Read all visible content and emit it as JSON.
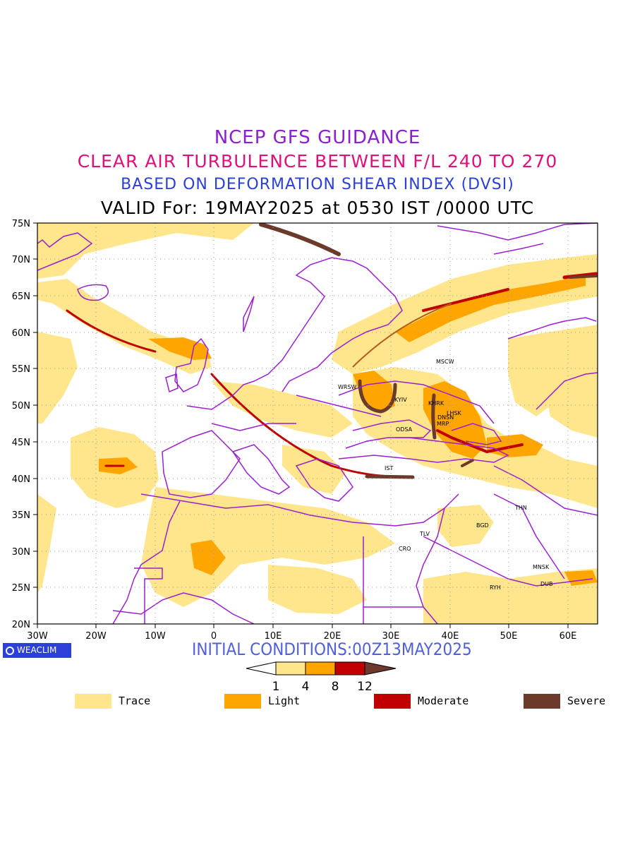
{
  "titles": {
    "line1": "NCEP GFS GUIDANCE",
    "line2": "CLEAR AIR TURBULENCE BETWEEN F/L 240 TO 270",
    "line3": "BASED ON DEFORMATION SHEAR INDEX (DVSI)",
    "line4": "VALID For: 19MAY2025 at 0530 IST /0000 UTC"
  },
  "colors": {
    "title1": "#8a1fd0",
    "title2": "#e0107a",
    "title3": "#2a40d8",
    "trace": "#ffe68c",
    "light": "#ffa500",
    "moderate": "#c00000",
    "severe": "#6b3a2a",
    "coast": "#9b1fcf"
  },
  "axes": {
    "lat_labels": [
      "75N",
      "70N",
      "65N",
      "60N",
      "55N",
      "50N",
      "45N",
      "40N",
      "35N",
      "30N",
      "25N",
      "20N"
    ],
    "lon_labels": [
      "30W",
      "20W",
      "10W",
      "0",
      "10E",
      "20E",
      "30E",
      "40E",
      "50E",
      "60E"
    ]
  },
  "cities": [
    {
      "name": "MSCW"
    },
    {
      "name": "WRSW"
    },
    {
      "name": "KYIV"
    },
    {
      "name": "KHRK"
    },
    {
      "name": "LHSK"
    },
    {
      "name": "DNSN"
    },
    {
      "name": "MRP"
    },
    {
      "name": "ODSA"
    },
    {
      "name": "IST"
    },
    {
      "name": "THN"
    },
    {
      "name": "BGD"
    },
    {
      "name": "TLV"
    },
    {
      "name": "CRO"
    },
    {
      "name": "MNSK"
    },
    {
      "name": "DUB"
    },
    {
      "name": "RYH"
    }
  ],
  "brand": "WEACLIM",
  "initial": "INITIAL  CONDITIONS:00Z13MAY2025",
  "colorbar": {
    "ticks": [
      "1",
      "4",
      "8",
      "12"
    ]
  },
  "legend": [
    {
      "label": "Trace"
    },
    {
      "label": "Light"
    },
    {
      "label": "Moderate"
    },
    {
      "label": "Severe"
    }
  ]
}
